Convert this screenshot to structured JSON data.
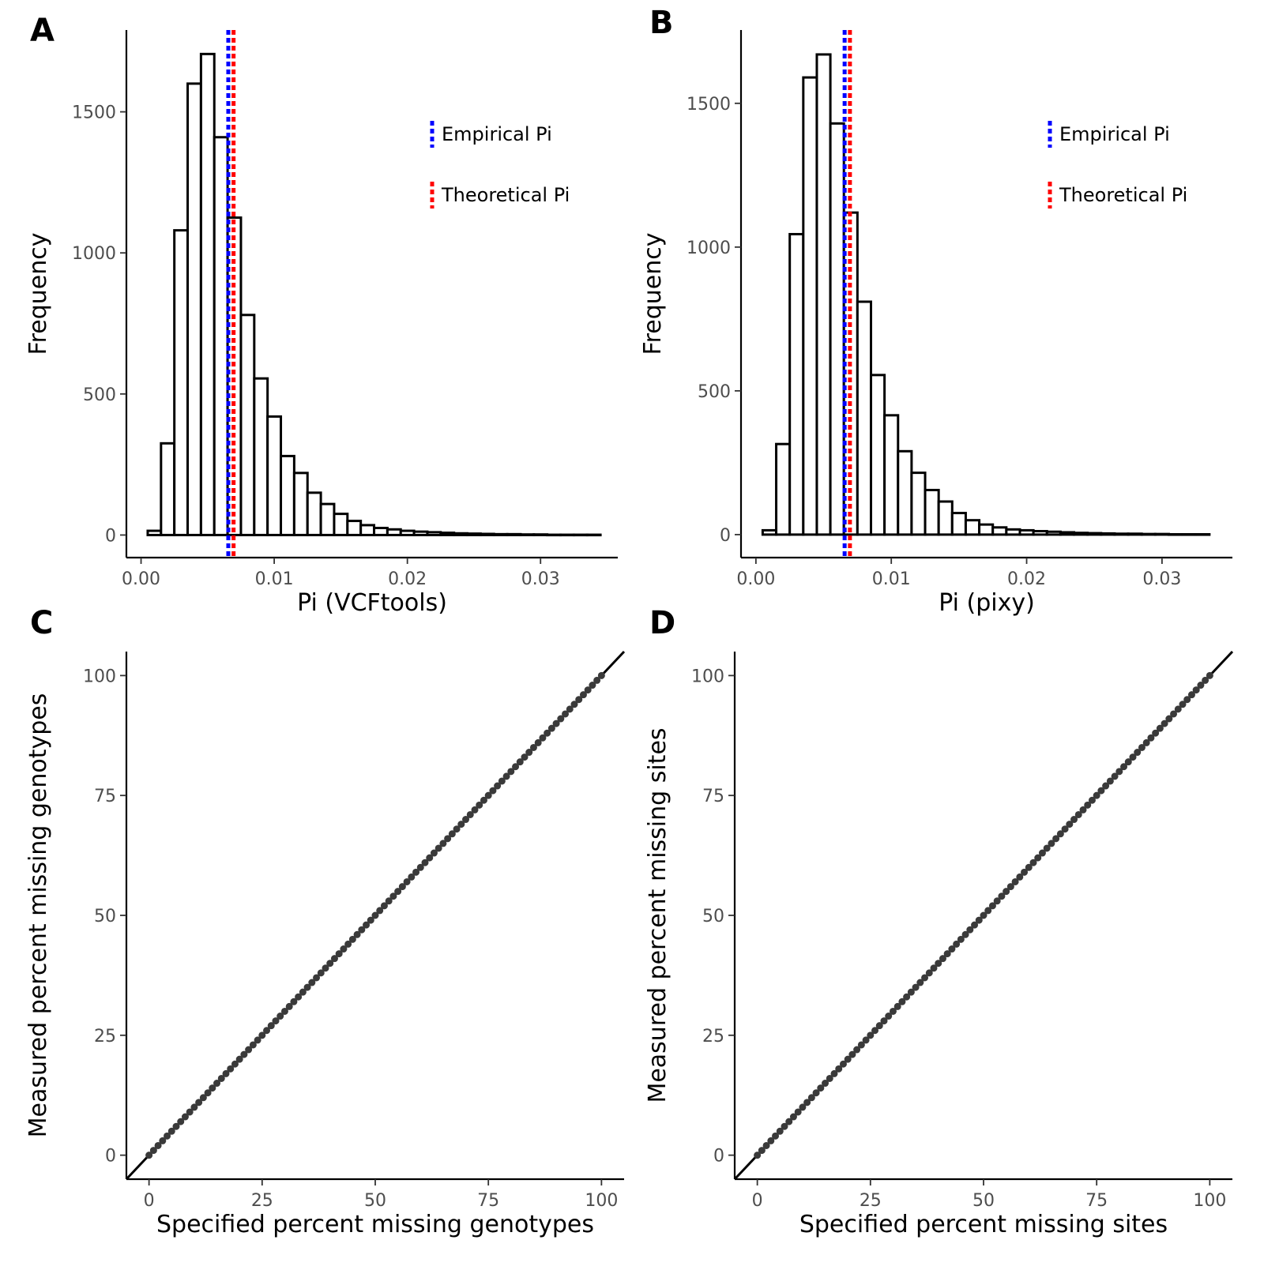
{
  "chart_data": [
    {
      "panel": "A",
      "type": "bar",
      "xlabel": "Pi (VCFtools)",
      "ylabel": "Frequency",
      "xlim": [
        -0.0011,
        0.0358
      ],
      "ylim": [
        -80,
        1790
      ],
      "xticks": [
        "0.00",
        "0.01",
        "0.02",
        "0.03"
      ],
      "yticks": [
        "0",
        "500",
        "1000",
        "1500"
      ],
      "bin_edges": [
        0.0005,
        0.0015,
        0.0025,
        0.0035,
        0.0045,
        0.0055,
        0.0065,
        0.0075,
        0.0085,
        0.0095,
        0.0105,
        0.0115,
        0.0125,
        0.0135,
        0.0145,
        0.0155,
        0.0165,
        0.0175,
        0.0185,
        0.0195,
        0.0205,
        0.0215,
        0.0225,
        0.0235,
        0.0245,
        0.0255,
        0.0265,
        0.0275,
        0.0285,
        0.0295,
        0.0305,
        0.0315,
        0.0325,
        0.0335,
        0.0345
      ],
      "values": [
        15,
        325,
        1080,
        1600,
        1705,
        1410,
        1125,
        780,
        555,
        420,
        280,
        220,
        150,
        110,
        75,
        50,
        35,
        25,
        20,
        15,
        12,
        10,
        8,
        6,
        5,
        4,
        3,
        3,
        2,
        2,
        1,
        1,
        1,
        1
      ],
      "vlines": [
        {
          "name": "Empirical Pi",
          "x": 0.0067,
          "color": "#0000ff"
        },
        {
          "name": "Theoretical Pi",
          "x": 0.0068,
          "color": "#ff0000"
        }
      ],
      "legend_placement": "top-right",
      "grid": false
    },
    {
      "panel": "B",
      "type": "bar",
      "xlabel": "Pi (pixy)",
      "ylabel": "Frequency",
      "xlim": [
        -0.0011,
        0.0352
      ],
      "ylim": [
        -80,
        1755
      ],
      "xticks": [
        "0.00",
        "0.01",
        "0.02",
        "0.03"
      ],
      "yticks": [
        "0",
        "500",
        "1000",
        "1500"
      ],
      "bin_edges": [
        0.0005,
        0.0015,
        0.0025,
        0.0035,
        0.0045,
        0.0055,
        0.0065,
        0.0075,
        0.0085,
        0.0095,
        0.0105,
        0.0115,
        0.0125,
        0.0135,
        0.0145,
        0.0155,
        0.0165,
        0.0175,
        0.0185,
        0.0195,
        0.0205,
        0.0215,
        0.0225,
        0.0235,
        0.0245,
        0.0255,
        0.0265,
        0.0275,
        0.0285,
        0.0295,
        0.0305,
        0.0315,
        0.0325,
        0.0335
      ],
      "values": [
        15,
        315,
        1045,
        1590,
        1670,
        1430,
        1120,
        810,
        555,
        415,
        290,
        215,
        155,
        115,
        75,
        50,
        35,
        25,
        18,
        15,
        12,
        10,
        8,
        6,
        5,
        4,
        3,
        3,
        2,
        2,
        1,
        1,
        1
      ],
      "vlines": [
        {
          "name": "Empirical Pi",
          "x": 0.0067,
          "color": "#0000ff"
        },
        {
          "name": "Theoretical Pi",
          "x": 0.0068,
          "color": "#ff0000"
        }
      ],
      "legend_placement": "top-right",
      "grid": false
    },
    {
      "panel": "C",
      "type": "scatter",
      "xlabel": "Specified percent missing genotypes",
      "ylabel": "Measured percent missing genotypes",
      "xlim": [
        -5,
        105
      ],
      "ylim": [
        -5,
        105
      ],
      "xticks": [
        "0",
        "25",
        "50",
        "75",
        "100"
      ],
      "yticks": [
        "0",
        "25",
        "50",
        "75",
        "100"
      ],
      "points": "x = 0, 1, 2, ..., 100; y = x",
      "x_start": 0,
      "x_end": 100,
      "x_step": 1,
      "reference_line": "y = x",
      "grid": false
    },
    {
      "panel": "D",
      "type": "scatter",
      "xlabel": "Specified percent missing sites",
      "ylabel": "Measured percent missing sites",
      "xlim": [
        -5,
        105
      ],
      "ylim": [
        -5,
        105
      ],
      "xticks": [
        "0",
        "25",
        "50",
        "75",
        "100"
      ],
      "yticks": [
        "0",
        "25",
        "50",
        "75",
        "100"
      ],
      "points": "x = 0, 1, 2, ..., 100; y = x",
      "x_start": 0,
      "x_end": 100,
      "x_step": 1,
      "reference_line": "y = x",
      "grid": false
    }
  ]
}
